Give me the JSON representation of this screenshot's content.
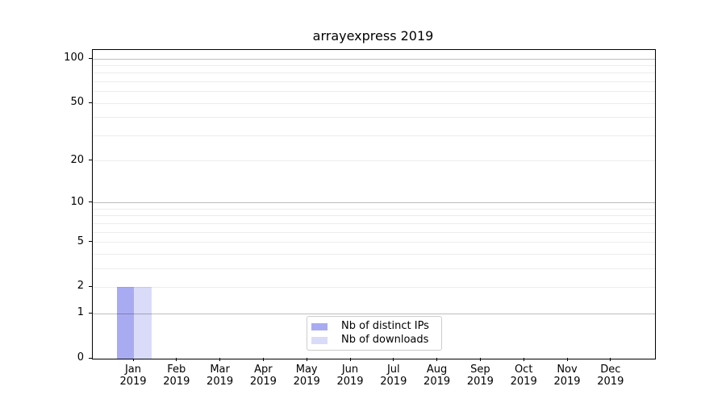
{
  "chart_data": {
    "type": "bar",
    "title": "arrayexpress 2019",
    "categories": [
      "Jan 2019",
      "Feb 2019",
      "Mar 2019",
      "Apr 2019",
      "May 2019",
      "Jun 2019",
      "Jul 2019",
      "Aug 2019",
      "Sep 2019",
      "Oct 2019",
      "Nov 2019",
      "Dec 2019"
    ],
    "month_labels": [
      "Jan",
      "Feb",
      "Mar",
      "Apr",
      "May",
      "Jun",
      "Jul",
      "Aug",
      "Sep",
      "Oct",
      "Nov",
      "Dec"
    ],
    "year_label": "2019",
    "series": [
      {
        "name": "Nb of distinct IPs",
        "color": "#a9abf2",
        "values": [
          2,
          0,
          0,
          0,
          0,
          0,
          0,
          0,
          0,
          0,
          0,
          0
        ]
      },
      {
        "name": "Nb of downloads",
        "color": "#d9dbf8",
        "values": [
          2,
          0,
          0,
          0,
          0,
          0,
          0,
          0,
          0,
          0,
          0,
          0
        ]
      }
    ],
    "xlabel": "",
    "ylabel": "",
    "yscale": "log1p",
    "ylim": [
      0,
      115
    ],
    "yticks": [
      0,
      1,
      2,
      5,
      10,
      20,
      50,
      100
    ],
    "yticks_minor": [
      3,
      4,
      6,
      7,
      8,
      9,
      30,
      40,
      60,
      70,
      80,
      90
    ],
    "major_gridline_values": [
      1,
      10,
      100
    ],
    "grid": "horizontal-both",
    "legend_position": "lower-center",
    "colors": {
      "major_grid": "#c2c2c2",
      "minor_grid": "#ededed",
      "spine": "#000000",
      "text": "#000000",
      "background": "#ffffff"
    }
  }
}
